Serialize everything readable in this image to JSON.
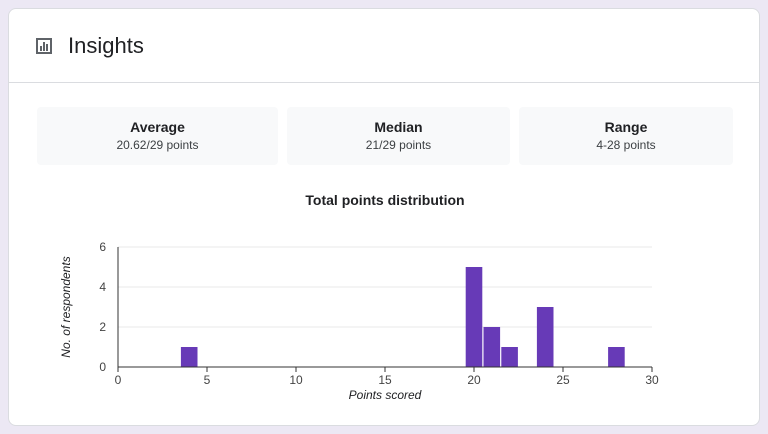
{
  "header": {
    "title": "Insights",
    "icon": "bar-chart-icon"
  },
  "stats": {
    "average": {
      "label": "Average",
      "value": "20.62/29 points"
    },
    "median": {
      "label": "Median",
      "value": "21/29 points"
    },
    "range": {
      "label": "Range",
      "value": "4-28 points"
    }
  },
  "colors": {
    "bar": "#673ab7",
    "background": "#ece8f4"
  },
  "chart_data": {
    "type": "bar",
    "title": "Total points distribution",
    "xlabel": "Points scored",
    "ylabel": "No. of respondents",
    "x": [
      4,
      20,
      21,
      22,
      24,
      28
    ],
    "values": [
      1,
      5,
      2,
      1,
      3,
      1
    ],
    "xlim": [
      0,
      30
    ],
    "ylim": [
      0,
      6
    ],
    "xticks": [
      "0",
      "5",
      "10",
      "15",
      "20",
      "25",
      "30"
    ],
    "yticks": [
      "0",
      "2",
      "4",
      "6"
    ],
    "grid": true
  }
}
